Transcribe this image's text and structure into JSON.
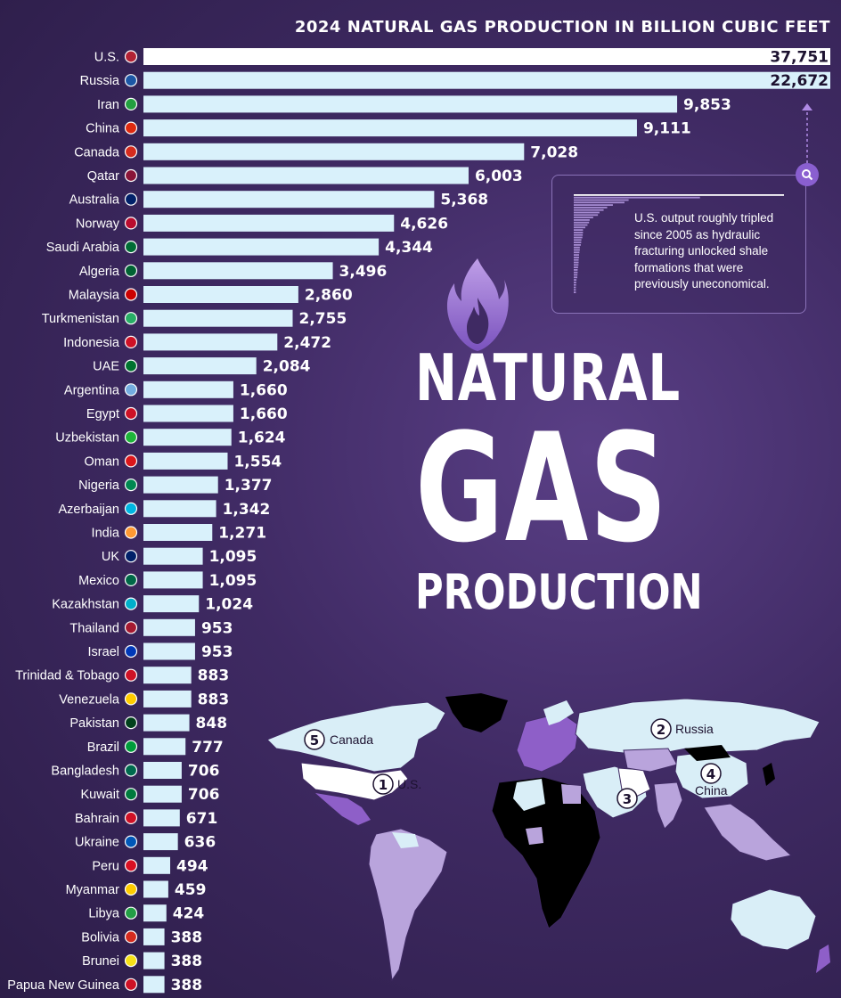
{
  "chart_data": {
    "type": "bar",
    "orientation": "horizontal",
    "title": "2024 NATURAL GAS PRODUCTION IN BILLION CUBIC FEET",
    "categories": [
      "U.S.",
      "Russia",
      "Iran",
      "China",
      "Canada",
      "Qatar",
      "Australia",
      "Norway",
      "Saudi Arabia",
      "Algeria",
      "Malaysia",
      "Turkmenistan",
      "Indonesia",
      "UAE",
      "Argentina",
      "Egypt",
      "Uzbekistan",
      "Oman",
      "Nigeria",
      "Azerbaijan",
      "India",
      "UK",
      "Mexico",
      "Kazakhstan",
      "Thailand",
      "Israel",
      "Trinidad & Tobago",
      "Venezuela",
      "Pakistan",
      "Brazil",
      "Bangladesh",
      "Kuwait",
      "Bahrain",
      "Ukraine",
      "Peru",
      "Myanmar",
      "Libya",
      "Bolivia",
      "Brunei",
      "Papua New Guinea"
    ],
    "values": [
      37751,
      22672,
      9853,
      9111,
      7028,
      6003,
      5368,
      4626,
      4344,
      3496,
      2860,
      2755,
      2472,
      2084,
      1660,
      1660,
      1624,
      1554,
      1377,
      1342,
      1271,
      1095,
      1095,
      1024,
      953,
      953,
      883,
      883,
      848,
      777,
      706,
      706,
      671,
      636,
      494,
      459,
      424,
      388,
      388,
      388
    ],
    "value_labels": [
      "37,751",
      "22,672",
      "9,853",
      "9,111",
      "7,028",
      "6,003",
      "5,368",
      "4,626",
      "4,344",
      "3,496",
      "2,860",
      "2,755",
      "2,472",
      "2,084",
      "1,660",
      "1,660",
      "1,624",
      "1,554",
      "1,377",
      "1,342",
      "1,271",
      "1,095",
      "1,095",
      "1,024",
      "953",
      "953",
      "883",
      "883",
      "848",
      "777",
      "706",
      "706",
      "671",
      "636",
      "494",
      "459",
      "424",
      "388",
      "388",
      "388"
    ],
    "axis_break": "U.S. and Russia bars truncated",
    "bar_color": "#d9f1fb",
    "flag_colors": [
      "#b22234",
      "#1c57a5",
      "#239f40",
      "#de2910",
      "#d52b1e",
      "#8a1538",
      "#012169",
      "#ba0c2f",
      "#006c35",
      "#006233",
      "#cc0001",
      "#28ae66",
      "#ce1126",
      "#00732f",
      "#74acdf",
      "#ce1126",
      "#1eb53a",
      "#db161b",
      "#008751",
      "#00b5e2",
      "#ff9933",
      "#012169",
      "#006847",
      "#00afca",
      "#a51931",
      "#0038b8",
      "#ce1126",
      "#ffcc00",
      "#01411c",
      "#009c3b",
      "#006a4e",
      "#007a3d",
      "#ce1126",
      "#0057b7",
      "#d91023",
      "#fecb00",
      "#239e46",
      "#d52b1e",
      "#f7e017",
      "#ce1126"
    ]
  },
  "headline": {
    "line1": "NATURAL",
    "line2": "GAS",
    "line3": "PRODUCTION"
  },
  "note": {
    "text": "U.S. output roughly tripled since 2005 as hydraulic fracturing unlocked shale formations that were previously uneconomical.",
    "icon": "search-icon"
  },
  "map": {
    "labels": [
      {
        "rank": "1",
        "name": "U.S."
      },
      {
        "rank": "2",
        "name": "Russia"
      },
      {
        "rank": "3",
        "name": ""
      },
      {
        "rank": "4",
        "name": "China"
      },
      {
        "rank": "5",
        "name": "Canada"
      }
    ],
    "colors": {
      "top": "#ffffff",
      "high": "#d9eef7",
      "mid": "#b9a4dc",
      "low": "#8e5fc8",
      "none": "#000000"
    }
  },
  "colors": {
    "background": "#3f2a63",
    "accent": "#8a5fd0"
  }
}
